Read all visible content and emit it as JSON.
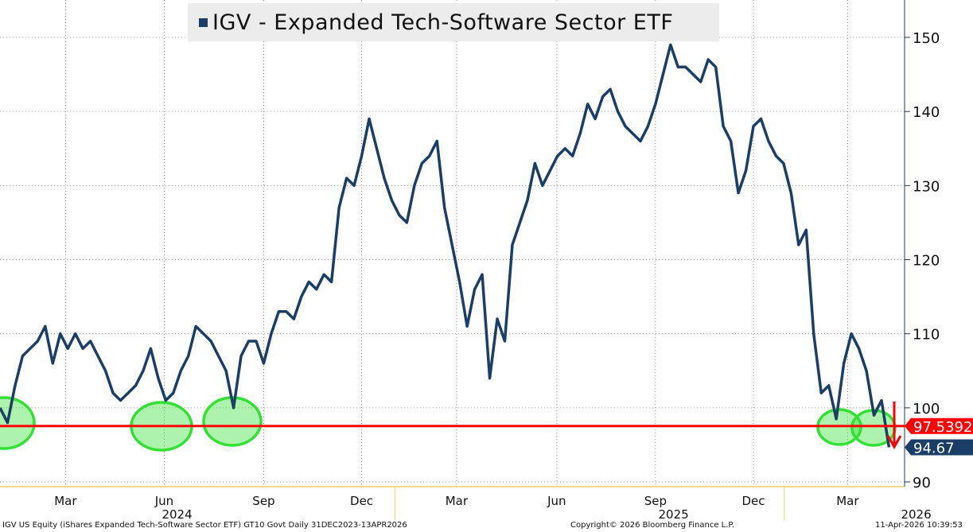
{
  "chart_data": {
    "type": "line",
    "title": "IGV - Expanded Tech-Software Sector ETF",
    "xlabel": "",
    "ylabel": "",
    "ylim": [
      88,
      155
    ],
    "yticks": [
      90,
      100,
      110,
      120,
      130,
      140,
      150
    ],
    "x_unit": "week since 31-Dec-2023",
    "x_ticks": [
      {
        "label": "Mar",
        "week": 8.7
      },
      {
        "label": "Jun",
        "week": 21.8
      },
      {
        "label": "Sep",
        "week": 35
      },
      {
        "label": "Dec",
        "week": 48
      },
      {
        "label": "Mar",
        "week": 60.6
      },
      {
        "label": "Jun",
        "week": 73.9
      },
      {
        "label": "Sep",
        "week": 87
      },
      {
        "label": "Dec",
        "week": 100
      },
      {
        "label": "Mar",
        "week": 112.5
      }
    ],
    "years": [
      {
        "label": "2024",
        "week": 23.5
      },
      {
        "label": "2025",
        "week": 89.4
      },
      {
        "label": "2026",
        "week": 121.6
      }
    ],
    "year_breaks": [
      52.4,
      104.1
    ],
    "series": [
      {
        "name": "IGV - Expanded Tech-Software Sector ETF",
        "color": "#1b3e66",
        "values": [
          100,
          98,
          103,
          107,
          108,
          109,
          111,
          106,
          110,
          108,
          110,
          108,
          109,
          107,
          105,
          102,
          101,
          102,
          103,
          105,
          108,
          104,
          101,
          102,
          105,
          107,
          111,
          110,
          109,
          107,
          105,
          100,
          107,
          109,
          109,
          106,
          110,
          113,
          113,
          112,
          115,
          117,
          116,
          118,
          117,
          127,
          131,
          130,
          134,
          139,
          135,
          131,
          128,
          126,
          125,
          130,
          133,
          134,
          136,
          127,
          122,
          117,
          111,
          116,
          118,
          104,
          112,
          109,
          122,
          125,
          128,
          133,
          130,
          132,
          134,
          135,
          134,
          137,
          141,
          139,
          142,
          143,
          140,
          138,
          137,
          136,
          138,
          141,
          145,
          149,
          146,
          146,
          145,
          144,
          147,
          146,
          138,
          136,
          129,
          132,
          138,
          139,
          136,
          134,
          133,
          129,
          122,
          124,
          110,
          102,
          103,
          98.5,
          106,
          110,
          108,
          105,
          99,
          101,
          94.67
        ]
      }
    ],
    "support_level": {
      "value": 97.5392,
      "label": "97.5392",
      "color": "#ff0000"
    },
    "last_price": {
      "value": 94.67,
      "label": "94.67",
      "color": "#1b3e66"
    },
    "highlight_color": "#33e033"
  },
  "footer": {
    "left": "IGV US Equity (iShares Expanded Tech-Software Sector ETF) GT10  Govt Daily 31DEC2023-13APR2026",
    "center": "Copyright© 2026 Bloomberg Finance L.P.",
    "right": "11-Apr-2026 10:39:53"
  }
}
